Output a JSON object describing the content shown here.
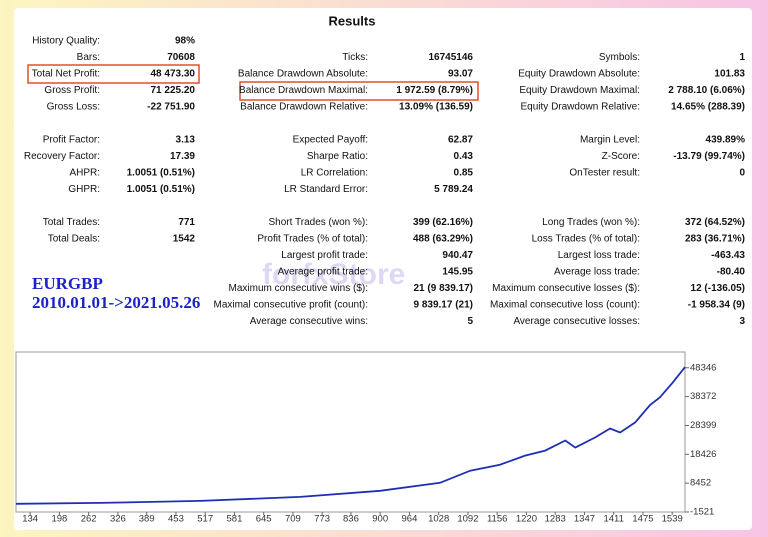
{
  "report": {
    "title": "Results",
    "sections": [
      [
        [
          {
            "label": "History Quality:",
            "value": "98%"
          },
          null,
          null
        ],
        [
          {
            "label": "Bars:",
            "value": "70608"
          },
          {
            "label": "Ticks:",
            "value": "16745146"
          },
          {
            "label": "Symbols:",
            "value": "1"
          }
        ],
        [
          {
            "label": "Total Net Profit:",
            "value": "48 473.30"
          },
          {
            "label": "Balance Drawdown Absolute:",
            "value": "93.07"
          },
          {
            "label": "Equity Drawdown Absolute:",
            "value": "101.83"
          }
        ],
        [
          {
            "label": "Gross Profit:",
            "value": "71 225.20"
          },
          {
            "label": "Balance Drawdown Maximal:",
            "value": "1 972.59 (8.79%)"
          },
          {
            "label": "Equity Drawdown Maximal:",
            "value": "2 788.10 (6.06%)"
          }
        ],
        [
          {
            "label": "Gross Loss:",
            "value": "-22 751.90"
          },
          {
            "label": "Balance Drawdown Relative:",
            "value": "13.09% (136.59)"
          },
          {
            "label": "Equity Drawdown Relative:",
            "value": "14.65% (288.39)"
          }
        ]
      ],
      [
        [
          {
            "label": "Profit Factor:",
            "value": "3.13"
          },
          {
            "label": "Expected Payoff:",
            "value": "62.87"
          },
          {
            "label": "Margin Level:",
            "value": "439.89%"
          }
        ],
        [
          {
            "label": "Recovery Factor:",
            "value": "17.39"
          },
          {
            "label": "Sharpe Ratio:",
            "value": "0.43"
          },
          {
            "label": "Z-Score:",
            "value": "-13.79 (99.74%)"
          }
        ],
        [
          {
            "label": "AHPR:",
            "value": "1.0051 (0.51%)"
          },
          {
            "label": "LR Correlation:",
            "value": "0.85"
          },
          {
            "label": "OnTester result:",
            "value": "0"
          }
        ],
        [
          {
            "label": "GHPR:",
            "value": "1.0051 (0.51%)"
          },
          {
            "label": "LR Standard Error:",
            "value": "5 789.24"
          },
          null
        ]
      ],
      [
        [
          {
            "label": "Total Trades:",
            "value": "771"
          },
          {
            "label": "Short Trades (won %):",
            "value": "399 (62.16%)"
          },
          {
            "label": "Long Trades (won %):",
            "value": "372 (64.52%)"
          }
        ],
        [
          {
            "label": "Total Deals:",
            "value": "1542"
          },
          {
            "label": "Profit Trades (% of total):",
            "value": "488 (63.29%)"
          },
          {
            "label": "Loss Trades (% of total):",
            "value": "283 (36.71%)"
          }
        ],
        [
          null,
          {
            "label": "Largest profit trade:",
            "value": "940.47"
          },
          {
            "label": "Largest loss trade:",
            "value": "-463.43"
          }
        ],
        [
          null,
          {
            "label": "Average profit trade:",
            "value": "145.95"
          },
          {
            "label": "Average loss trade:",
            "value": "-80.40"
          }
        ],
        [
          null,
          {
            "label": "Maximum consecutive wins ($):",
            "value": "21 (9 839.17)"
          },
          {
            "label": "Maximum consecutive losses ($):",
            "value": "12 (-136.05)"
          }
        ],
        [
          null,
          {
            "label": "Maximal consecutive profit (count):",
            "value": "9 839.17 (21)"
          },
          {
            "label": "Maximal consecutive loss (count):",
            "value": "-1 958.34 (9)"
          }
        ],
        [
          null,
          {
            "label": "Average consecutive wins:",
            "value": "5"
          },
          {
            "label": "Average consecutive losses:",
            "value": "3"
          }
        ]
      ]
    ]
  },
  "annotation": {
    "symbol": "EURGBP",
    "period": "2010.01.01->2021.05.26"
  },
  "watermark": "forfxStore",
  "chart_data": {
    "type": "line",
    "color": "#1f2fb4",
    "x": [
      103,
      287,
      506,
      725,
      900,
      1031,
      1097,
      1162,
      1217,
      1261,
      1305,
      1327,
      1370,
      1403,
      1425,
      1458,
      1490,
      1512,
      1539,
      1567
    ],
    "values": [
      1300,
      1610,
      2300,
      3700,
      5800,
      8570,
      12750,
      14830,
      17970,
      19700,
      23190,
      20750,
      24230,
      27360,
      25970,
      29450,
      35370,
      38150,
      43020,
      48590
    ],
    "xlim": [
      103,
      1567
    ],
    "xticks": [
      134,
      198,
      262,
      326,
      389,
      453,
      517,
      581,
      645,
      709,
      773,
      836,
      900,
      964,
      1028,
      1092,
      1156,
      1220,
      1283,
      1347,
      1411,
      1475,
      1539
    ],
    "ylim": [
      -1521,
      53800
    ],
    "yticks": [
      -1521,
      8452,
      18426,
      28399,
      38372,
      48346
    ]
  }
}
